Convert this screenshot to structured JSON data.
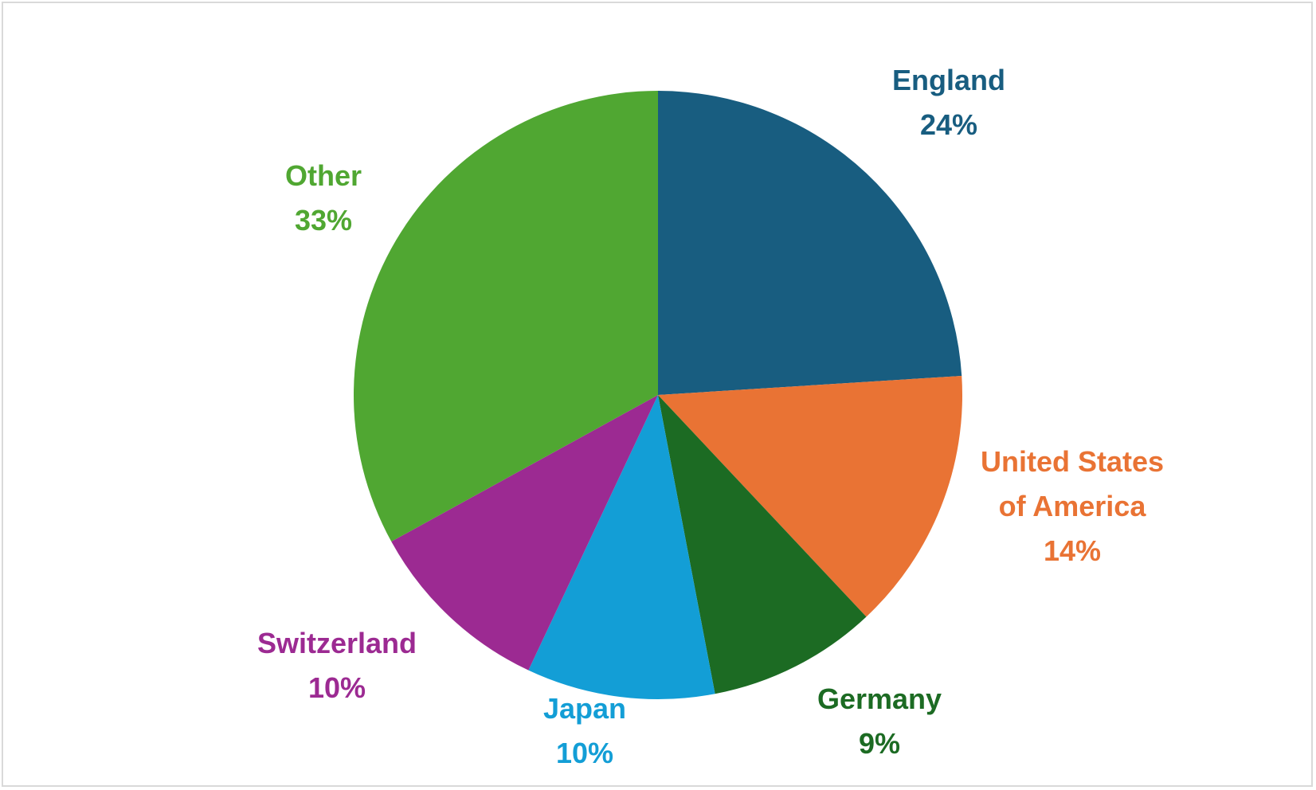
{
  "chart_data": {
    "type": "pie",
    "title": "",
    "slices": [
      {
        "label_lines": [
          "England"
        ],
        "pct_label": "24%",
        "value": 24,
        "color": "#185d80"
      },
      {
        "label_lines": [
          "United States",
          "of America"
        ],
        "pct_label": "14%",
        "value": 14,
        "color": "#e97334"
      },
      {
        "label_lines": [
          "Germany"
        ],
        "pct_label": "9%",
        "value": 9,
        "color": "#1c6b23"
      },
      {
        "label_lines": [
          "Japan"
        ],
        "pct_label": "10%",
        "value": 10,
        "color": "#139ed6"
      },
      {
        "label_lines": [
          "Switzerland"
        ],
        "pct_label": "10%",
        "value": 10,
        "color": "#9c2a92"
      },
      {
        "label_lines": [
          "Other"
        ],
        "pct_label": "33%",
        "value": 33,
        "color": "#50a732"
      }
    ],
    "start_angle": "top",
    "direction": "clockwise",
    "legend": "none",
    "data_labels": "outside"
  }
}
